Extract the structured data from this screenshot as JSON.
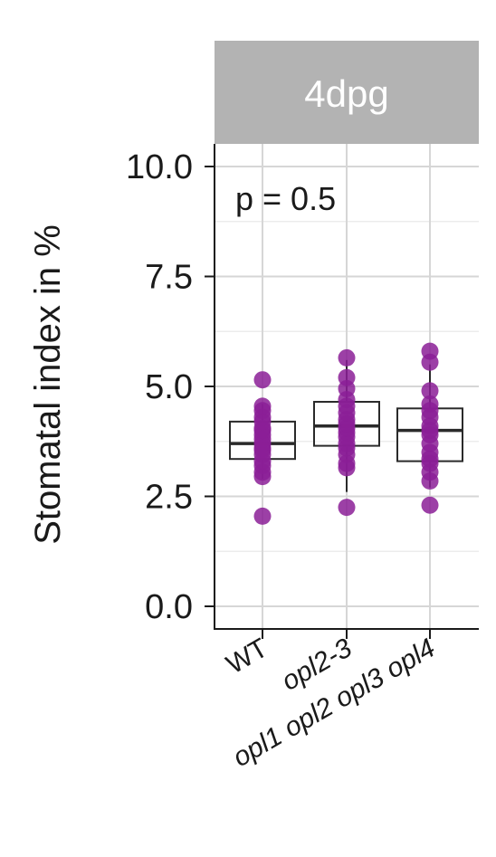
{
  "chart_data": {
    "type": "box",
    "facet": "4dpg",
    "ylabel": "Stomatal index in %",
    "xlabel": "",
    "ylim": [
      0,
      10.5
    ],
    "yticks": [
      0.0,
      2.5,
      5.0,
      7.5,
      10.0
    ],
    "ytick_labels": [
      "0.0",
      "2.5",
      "5.0",
      "7.5",
      "10.0"
    ],
    "annotation": "p = 0.5",
    "grid": true,
    "point_color": "#8b1f96",
    "categories": [
      {
        "label": "WT",
        "italic": false
      },
      {
        "label": "opl2-3",
        "italic": true
      },
      {
        "label": "opl1 opl2 opl3 opl4",
        "italic": true
      }
    ],
    "boxes": [
      {
        "min": 2.9,
        "q1": 3.35,
        "median": 3.7,
        "q3": 4.2,
        "max": 4.6
      },
      {
        "min": 2.6,
        "q1": 3.65,
        "median": 4.1,
        "q3": 4.65,
        "max": 5.6
      },
      {
        "min": 2.7,
        "q1": 3.3,
        "median": 4.0,
        "q3": 4.5,
        "max": 5.5
      }
    ],
    "points": [
      [
        2.05,
        2.95,
        3.05,
        3.2,
        3.3,
        3.45,
        3.55,
        3.6,
        3.7,
        3.8,
        3.9,
        4.0,
        4.05,
        4.2,
        4.3,
        4.45,
        4.55,
        5.15
      ],
      [
        2.25,
        3.15,
        3.25,
        3.45,
        3.6,
        3.7,
        3.85,
        3.95,
        4.05,
        4.15,
        4.25,
        4.4,
        4.55,
        4.7,
        4.95,
        5.2,
        5.65
      ],
      [
        2.3,
        2.85,
        3.05,
        3.25,
        3.35,
        3.5,
        3.7,
        3.9,
        4.0,
        4.1,
        4.3,
        4.45,
        4.6,
        4.9,
        5.55,
        5.8
      ]
    ]
  }
}
